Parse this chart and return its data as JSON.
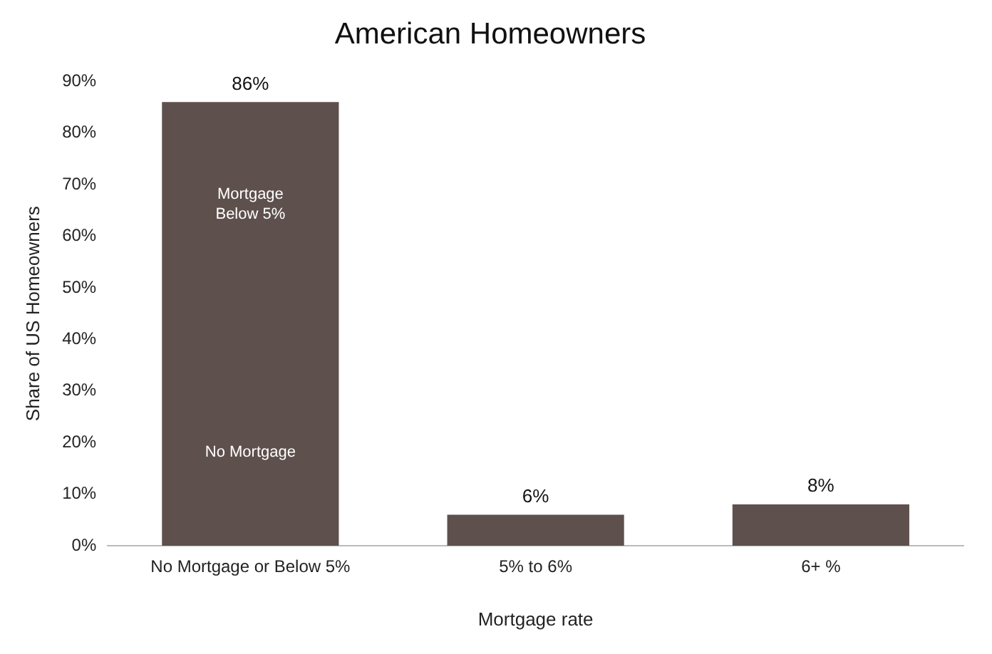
{
  "chart_data": {
    "type": "bar",
    "title": "American Homeowners",
    "xlabel": "Mortgage rate",
    "ylabel": "Share of US Homeowners",
    "categories": [
      "No Mortgage or Below 5%",
      "5% to 6%",
      "6+ %"
    ],
    "values": [
      86,
      6,
      8
    ],
    "color": "#5e504c",
    "value_labels": [
      "86%",
      "6%",
      "8%"
    ],
    "ylim": [
      0,
      90
    ],
    "yticks": [
      {
        "value": 0,
        "label": "0%"
      },
      {
        "value": 10,
        "label": "10%"
      },
      {
        "value": 20,
        "label": "20%"
      },
      {
        "value": 30,
        "label": "30%"
      },
      {
        "value": 40,
        "label": "40%"
      },
      {
        "value": 50,
        "label": "50%"
      },
      {
        "value": 60,
        "label": "60%"
      },
      {
        "value": 70,
        "label": "70%"
      },
      {
        "value": 80,
        "label": "80%"
      },
      {
        "value": 90,
        "label": "90%"
      }
    ],
    "annotations": [
      "Mortgage Below 5%",
      "No Mortgage"
    ],
    "grid": false,
    "legend": false
  }
}
